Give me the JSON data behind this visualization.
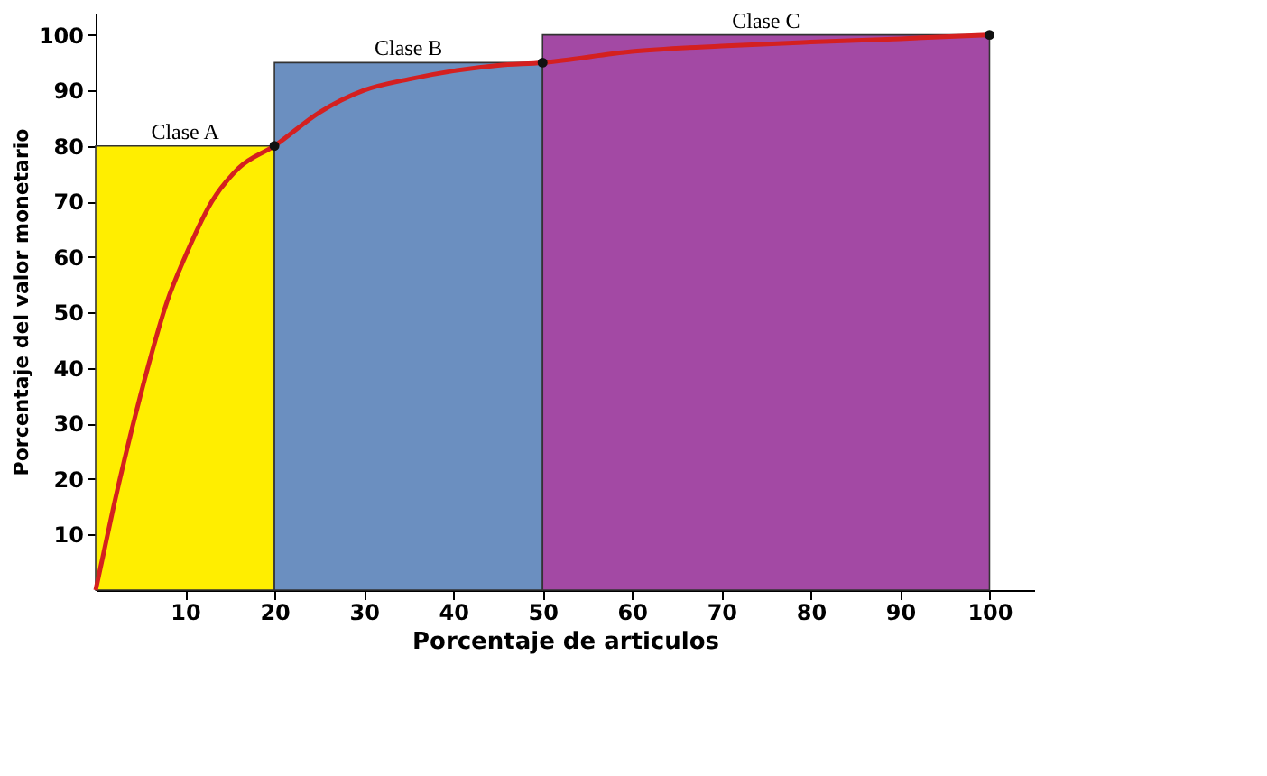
{
  "chart_data": {
    "type": "area",
    "xlabel": "Porcentaje de articulos",
    "ylabel": "Porcentaje del valor monetario",
    "xlim": [
      0,
      105
    ],
    "ylim": [
      0,
      104
    ],
    "xticks": [
      10,
      20,
      30,
      40,
      50,
      60,
      70,
      80,
      90,
      100
    ],
    "yticks": [
      10,
      20,
      30,
      40,
      50,
      60,
      70,
      80,
      90,
      100
    ],
    "grid": false,
    "series": [
      {
        "name": "Clase A",
        "color": "#ffee00",
        "x": [
          0,
          20
        ],
        "values": [
          80,
          80
        ]
      },
      {
        "name": "Clase B",
        "color": "#6b8fc0",
        "x": [
          20,
          50
        ],
        "values": [
          95,
          95
        ]
      },
      {
        "name": "Clase C",
        "color": "#a349a4",
        "x": [
          50,
          100
        ],
        "values": [
          100,
          100
        ]
      },
      {
        "type": "line",
        "color": "#d42020",
        "marker": "none",
        "x": [
          0,
          2,
          5,
          8,
          10,
          13,
          16,
          20,
          25,
          30,
          35,
          40,
          45,
          50,
          60,
          70,
          80,
          90,
          100
        ],
        "values": [
          0,
          15,
          35,
          52,
          60,
          70,
          76,
          80,
          86,
          90,
          92,
          93.5,
          94.5,
          95,
          97,
          98,
          98.7,
          99.3,
          100
        ]
      },
      {
        "type": "scatter",
        "color": "#111111",
        "marker": "circle",
        "x": [
          20,
          50,
          100
        ],
        "values": [
          80,
          95,
          100
        ]
      }
    ]
  }
}
